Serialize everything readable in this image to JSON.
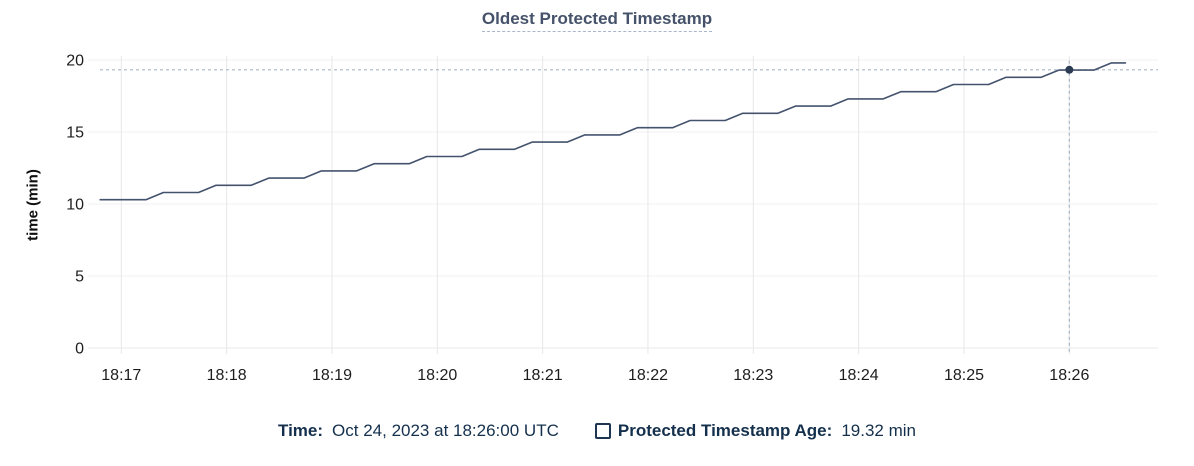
{
  "title": "Oldest Protected Timestamp",
  "y_axis_label": "time (min)",
  "legend": {
    "time_label": "Time:",
    "time_value": "Oct 24, 2023 at 18:26:00 UTC",
    "series_label": "Protected Timestamp Age:",
    "series_value": "19.32 min"
  },
  "colors": {
    "title": "#455269",
    "title_underline": "#a9b6cb",
    "line": "#44536d",
    "dot": "#2d3c55",
    "hover_dash": "#a8b8c6",
    "grid_vertical": "#e7e7e7",
    "grid_horizontal": "#f2f2f2",
    "grid_zero": "#e9e9e9",
    "tick_text": "#1d1d1d",
    "legend_text": "#14304d"
  },
  "chart_data": {
    "type": "line",
    "title": "Oldest Protected Timestamp",
    "xlabel": "",
    "ylabel": "time (min)",
    "legend_position": "bottom",
    "grid": true,
    "x_tick_labels": [
      "18:17",
      "18:18",
      "18:19",
      "18:20",
      "18:21",
      "18:22",
      "18:23",
      "18:24",
      "18:25",
      "18:26"
    ],
    "x_unit": "seconds since 18:17:00 UTC",
    "xlim_seconds": [
      -12,
      591
    ],
    "y_ticks": [
      0,
      5,
      10,
      15,
      20
    ],
    "ylim": [
      0,
      20
    ],
    "series": [
      {
        "name": "Protected Timestamp Age",
        "unit": "min",
        "points": [
          [
            -12,
            10.3
          ],
          [
            14,
            10.3
          ],
          [
            24,
            10.8
          ],
          [
            44,
            10.8
          ],
          [
            54,
            11.3
          ],
          [
            74,
            11.3
          ],
          [
            84,
            11.8
          ],
          [
            104,
            11.8
          ],
          [
            114,
            12.3
          ],
          [
            134,
            12.3
          ],
          [
            144,
            12.8
          ],
          [
            164,
            12.8
          ],
          [
            174,
            13.3
          ],
          [
            194,
            13.3
          ],
          [
            204,
            13.8
          ],
          [
            224,
            13.8
          ],
          [
            234,
            14.3
          ],
          [
            254,
            14.3
          ],
          [
            264,
            14.8
          ],
          [
            284,
            14.8
          ],
          [
            294,
            15.3
          ],
          [
            314,
            15.3
          ],
          [
            324,
            15.8
          ],
          [
            344,
            15.8
          ],
          [
            354,
            16.3
          ],
          [
            374,
            16.3
          ],
          [
            384,
            16.8
          ],
          [
            404,
            16.8
          ],
          [
            414,
            17.3
          ],
          [
            434,
            17.3
          ],
          [
            444,
            17.8
          ],
          [
            464,
            17.8
          ],
          [
            474,
            18.3
          ],
          [
            494,
            18.3
          ],
          [
            504,
            18.8
          ],
          [
            524,
            18.8
          ],
          [
            534,
            19.3
          ],
          [
            554,
            19.3
          ],
          [
            564,
            19.8
          ],
          [
            572,
            19.8
          ]
        ]
      }
    ],
    "hover": {
      "t_seconds": 540,
      "time_text": "Oct 24, 2023 at 18:26:00 UTC",
      "value": 19.32,
      "value_text": "19.32 min"
    }
  }
}
